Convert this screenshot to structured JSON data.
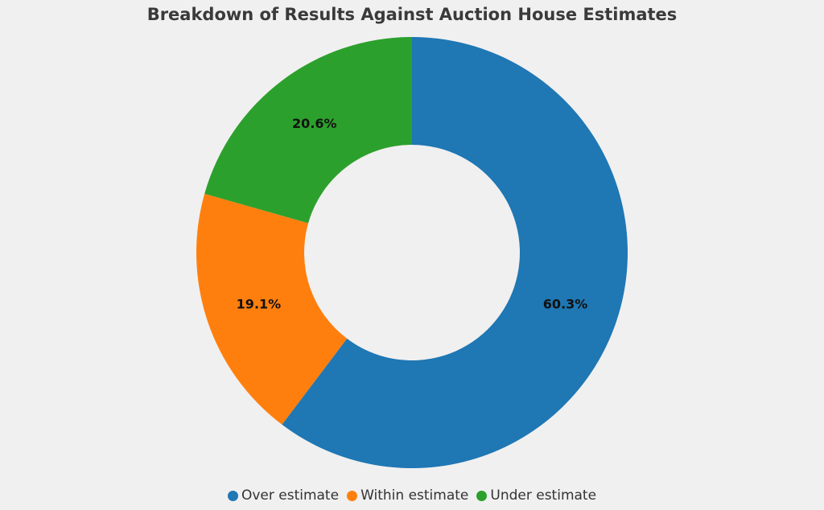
{
  "chart_data": {
    "type": "pie",
    "variant": "donut",
    "title": "Breakdown of Results Against Auction House Estimates",
    "categories": [
      "Over estimate",
      "Within estimate",
      "Under estimate"
    ],
    "values": [
      60.3,
      19.1,
      20.6
    ],
    "value_labels": [
      "60.3%",
      "19.1%",
      "20.6%"
    ],
    "colors": [
      "#1f77b4",
      "#ff7f0e",
      "#2ca02c"
    ],
    "direction": "clockwise",
    "start_angle": "top",
    "legend_position": "bottom-center",
    "legend": [
      "Over estimate",
      "Within estimate",
      "Under estimate"
    ]
  }
}
